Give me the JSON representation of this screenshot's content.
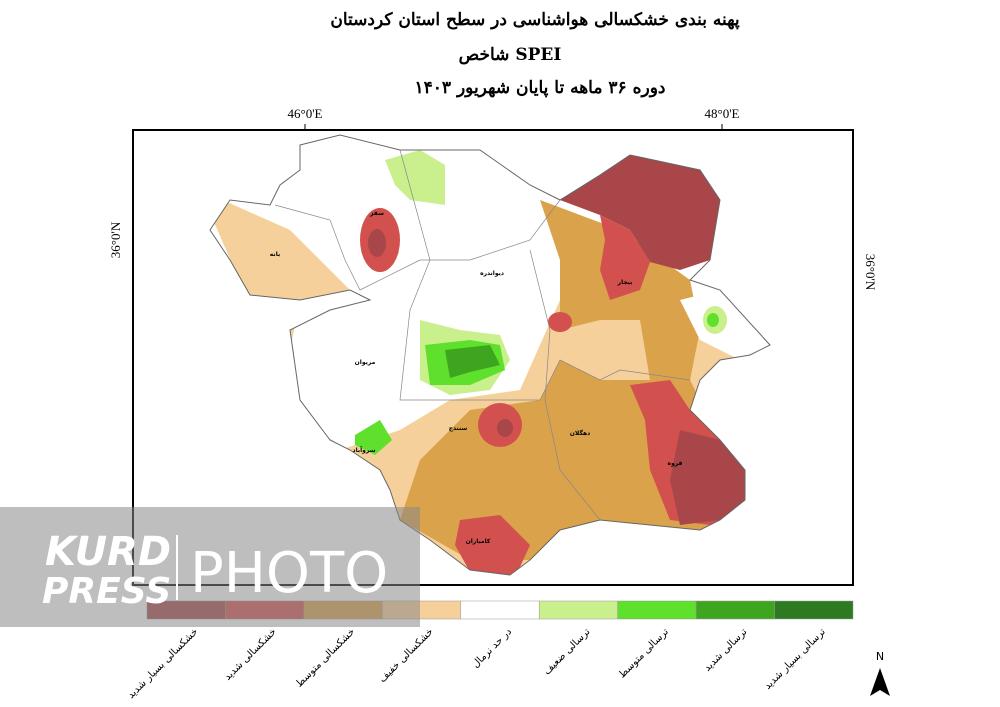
{
  "header": {
    "title": "پهنه بندی خشکسالی هواشناسی در سطح استان کردستان",
    "index": "شاخص SPEI",
    "period": "دوره ۳۶ ماهه تا پایان شهریور ۱۴۰۳"
  },
  "coordinates": {
    "lon_left": "46°0'E",
    "lon_right": "48°0'E",
    "lat_left": "36°0'N",
    "lat_right": "36°0'N"
  },
  "cities": [
    "سقز",
    "بانه",
    "دیواندره",
    "بیجار",
    "مریوان",
    "سنندج",
    "سروآباد",
    "دهگلان",
    "قروه",
    "کامیاران"
  ],
  "legend": [
    {
      "label": "خشکسالی بسیار شدید",
      "color": "#a8464a"
    },
    {
      "label": "خشکسالی شدید",
      "color": "#d2504e"
    },
    {
      "label": "خشکسالی متوسط",
      "color": "#dba24c"
    },
    {
      "label": "خشکسالی خفیف",
      "color": "#f6d09a"
    },
    {
      "label": "در حد نرمال",
      "color": "#ffffff"
    },
    {
      "label": "ترسالی ضعیف",
      "color": "#c9f08c"
    },
    {
      "label": "ترسالی متوسط",
      "color": "#5fe02c"
    },
    {
      "label": "ترسالی شدید",
      "color": "#3ea51e"
    },
    {
      "label": "ترسالی بسیار شدید",
      "color": "#2e7a22"
    }
  ],
  "north": "N",
  "watermark": {
    "line1": "KURD",
    "line2": "PRESS",
    "line3": "PHOTO"
  }
}
